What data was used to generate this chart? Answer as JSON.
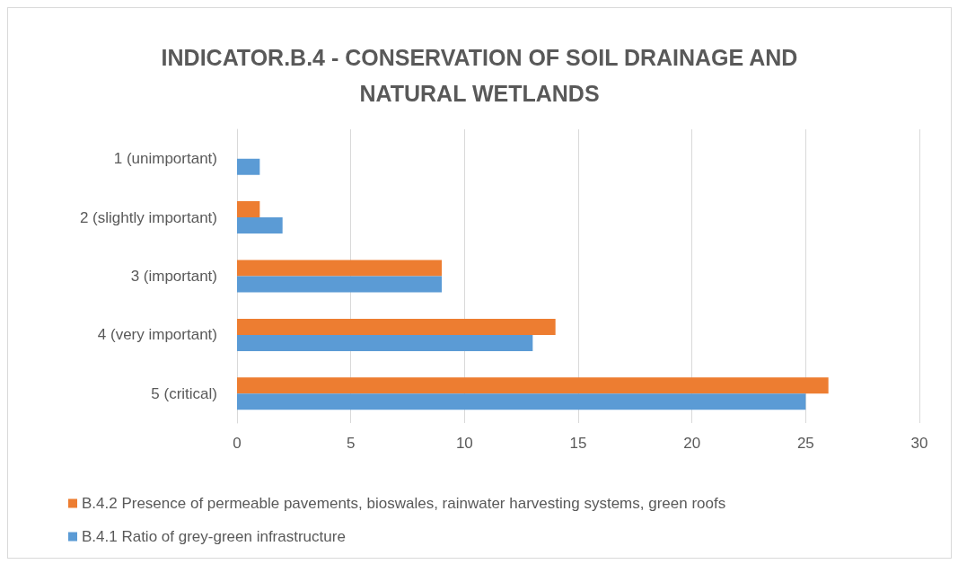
{
  "chart_data": {
    "type": "bar",
    "orientation": "horizontal",
    "title": "INDICATOR.B.4 - CONSERVATION OF SOIL DRAINAGE AND\nNATURAL WETLANDS",
    "categories": [
      "1 (unimportant)",
      "2 (slightly important)",
      "3 (important)",
      "4 (very important)",
      "5 (critical)"
    ],
    "series": [
      {
        "name": "B.4.2 Presence of permeable pavements, bioswales, rainwater harvesting systems, green roofs",
        "color": "#ed7d31",
        "values": [
          0,
          1,
          9,
          14,
          26
        ]
      },
      {
        "name": "B.4.1 Ratio of grey-green infrastructure",
        "color": "#5b9bd5",
        "values": [
          1,
          2,
          9,
          13,
          25
        ]
      }
    ],
    "xlim": [
      0,
      30
    ],
    "xticks": [
      0,
      5,
      10,
      15,
      20,
      25,
      30
    ],
    "grid": "x",
    "legend": "bottom"
  }
}
